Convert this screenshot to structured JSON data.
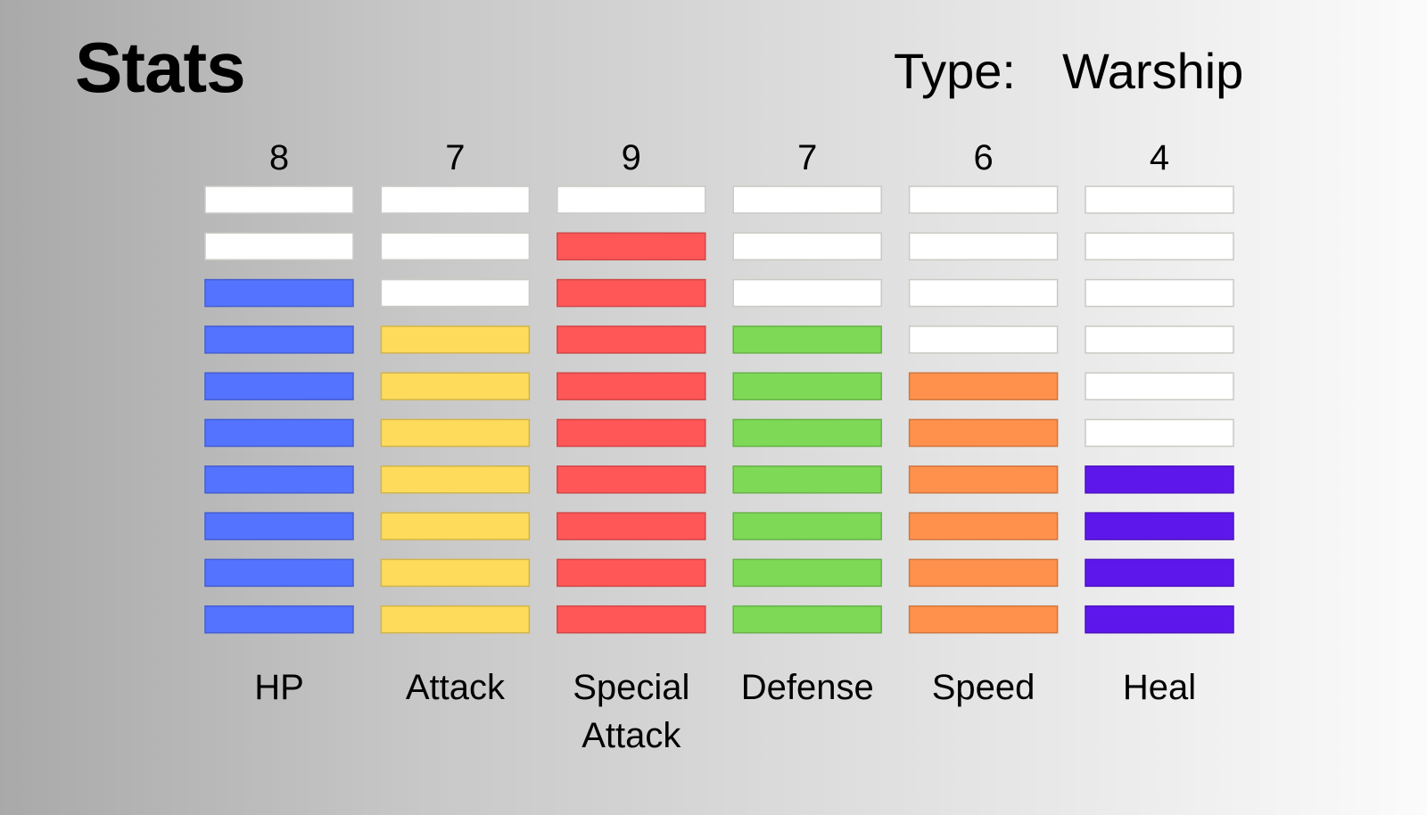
{
  "header": {
    "title": "Stats",
    "type_label": "Type:",
    "type_value": "Warship"
  },
  "chart_data": {
    "type": "bar",
    "title": "Stats",
    "max_segments": 10,
    "empty_color": "#ffffff",
    "categories": [
      "HP",
      "Attack",
      "Special Attack",
      "Defense",
      "Speed",
      "Heal"
    ],
    "label_lines": [
      [
        "HP"
      ],
      [
        "Attack"
      ],
      [
        "Special",
        "Attack"
      ],
      [
        "Defense"
      ],
      [
        "Speed"
      ],
      [
        "Heal"
      ]
    ],
    "values": [
      8,
      7,
      9,
      7,
      6,
      4
    ],
    "colors": [
      "#5473ff",
      "#ffdb5c",
      "#ff5757",
      "#7ed957",
      "#ff914d",
      "#5e17eb"
    ]
  }
}
